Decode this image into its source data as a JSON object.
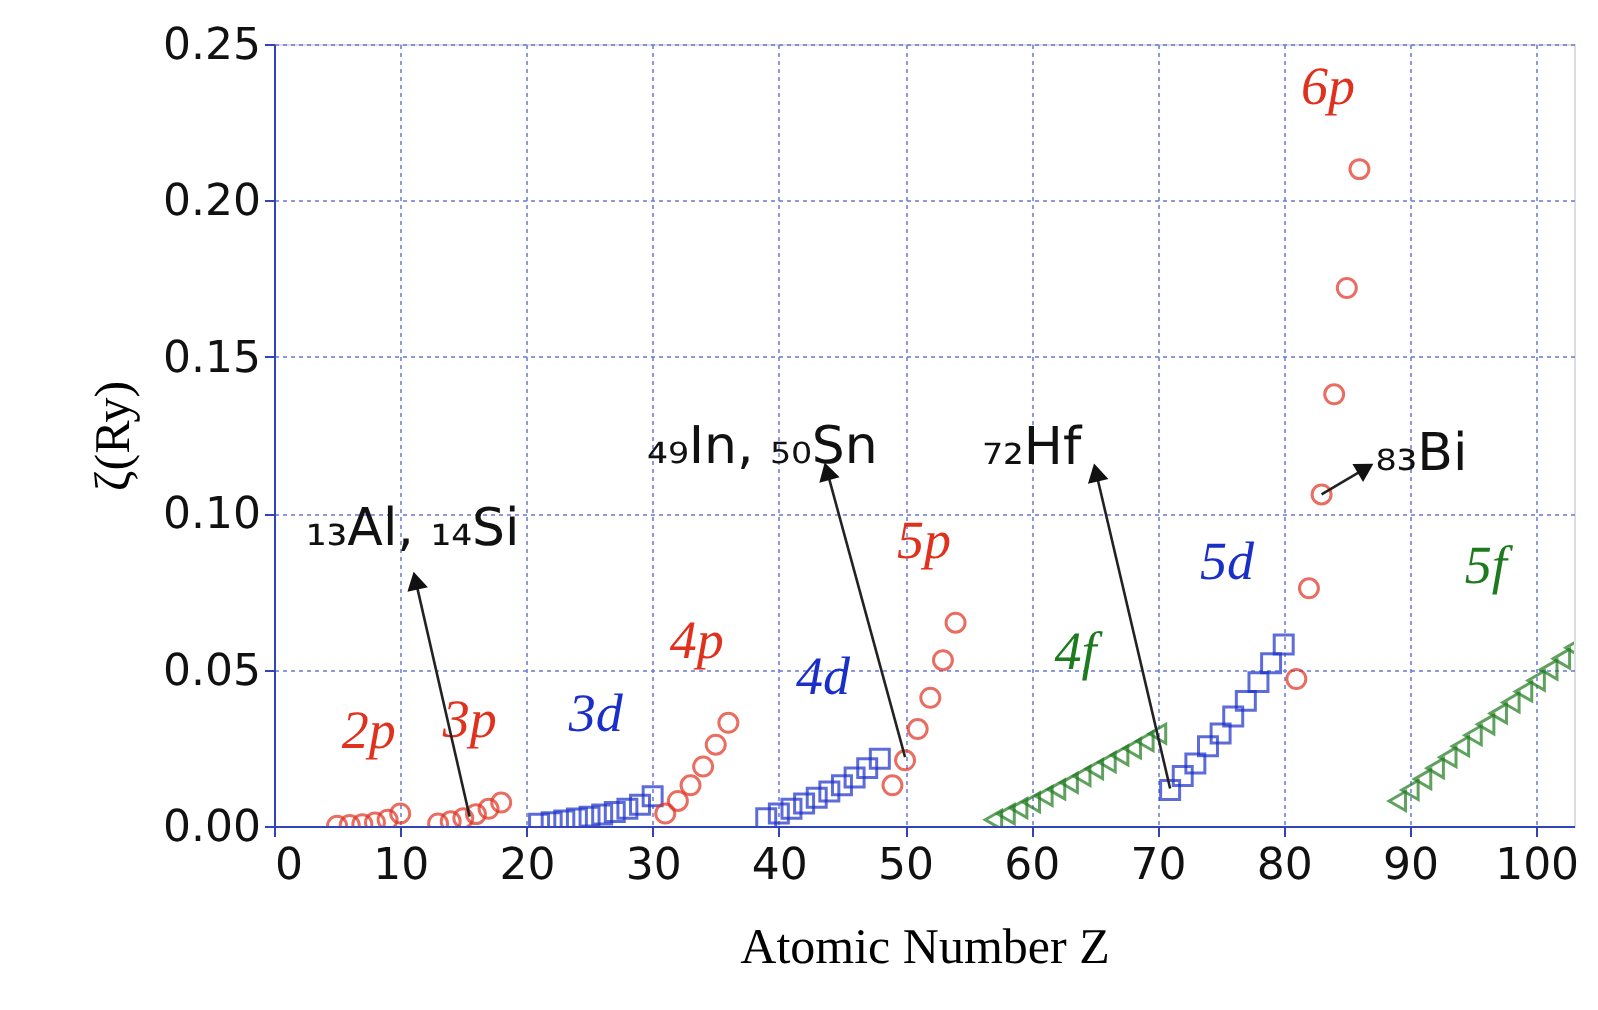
{
  "chart_data": {
    "type": "scatter",
    "xlabel": "Atomic Number Z",
    "ylabel": "ζ(Ry)",
    "xlim": [
      0,
      103
    ],
    "xticks": [
      0,
      10,
      20,
      30,
      40,
      50,
      60,
      70,
      80,
      90,
      100
    ],
    "ylim": [
      0,
      0.25
    ],
    "yticks": [
      {
        "value": 0,
        "label": "0.00"
      },
      {
        "value": 0.05,
        "label": "0.05"
      },
      {
        "value": 0.1,
        "label": "0.10"
      },
      {
        "value": 0.15,
        "label": "0.15"
      },
      {
        "value": 0.2,
        "label": "0.20"
      },
      {
        "value": 0.25,
        "label": "0.25"
      }
    ],
    "grid": true,
    "series": [
      {
        "name": "2p",
        "color": "#e0301e",
        "marker": "circle",
        "x": [
          5,
          6,
          7,
          8,
          9,
          10
        ],
        "values": [
          0.0001,
          0.0003,
          0.0006,
          0.0011,
          0.002,
          0.004
        ]
      },
      {
        "name": "3p",
        "color": "#e0301e",
        "marker": "circle",
        "x": [
          13,
          14,
          15,
          16,
          17,
          18
        ],
        "values": [
          0.0008,
          0.0015,
          0.0025,
          0.0038,
          0.0055,
          0.0075
        ]
      },
      {
        "name": "3d",
        "color": "#1a2fc8",
        "marker": "square",
        "x": [
          21,
          22,
          23,
          24,
          25,
          26,
          27,
          28,
          29,
          30
        ],
        "values": [
          0.0007,
          0.0012,
          0.0018,
          0.0024,
          0.003,
          0.0037,
          0.0045,
          0.0055,
          0.0068,
          0.0095
        ]
      },
      {
        "name": "4p",
        "color": "#e0301e",
        "marker": "circle",
        "x": [
          31,
          32,
          33,
          34,
          35,
          36
        ],
        "values": [
          0.004,
          0.008,
          0.013,
          0.019,
          0.026,
          0.033
        ]
      },
      {
        "name": "4d",
        "color": "#1a2fc8",
        "marker": "square",
        "x": [
          39,
          40,
          41,
          42,
          43,
          44,
          45,
          46,
          47,
          48
        ],
        "values": [
          0.0025,
          0.004,
          0.0055,
          0.0072,
          0.009,
          0.011,
          0.013,
          0.0155,
          0.0185,
          0.0215
        ]
      },
      {
        "name": "5p",
        "color": "#e0301e",
        "marker": "circle",
        "x": [
          49,
          50,
          51,
          52,
          53,
          54
        ],
        "values": [
          0.013,
          0.021,
          0.031,
          0.041,
          0.053,
          0.065
        ]
      },
      {
        "name": "4f",
        "color": "#1e7a1e",
        "marker": "triangle",
        "x": [
          57,
          58,
          59,
          60,
          61,
          62,
          63,
          64,
          65,
          66,
          67,
          68,
          69,
          70
        ],
        "values": [
          0.002,
          0.0038,
          0.0057,
          0.0076,
          0.0096,
          0.0117,
          0.0138,
          0.016,
          0.0182,
          0.0204,
          0.0226,
          0.0248,
          0.0271,
          0.0295
        ]
      },
      {
        "name": "5d",
        "color": "#1a2fc8",
        "marker": "square",
        "x": [
          71,
          72,
          73,
          74,
          75,
          76,
          77,
          78,
          79,
          80
        ],
        "values": [
          0.0115,
          0.016,
          0.02,
          0.0255,
          0.0296,
          0.035,
          0.04,
          0.046,
          0.052,
          0.058
        ]
      },
      {
        "name": "6p",
        "color": "#e0301e",
        "marker": "circle",
        "x": [
          81,
          82,
          83,
          84,
          85,
          86
        ],
        "values": [
          0.047,
          0.076,
          0.106,
          0.138,
          0.172,
          0.21
        ]
      },
      {
        "name": "5f",
        "color": "#1e7a1e",
        "marker": "triangle",
        "x": [
          89,
          90,
          91,
          92,
          93,
          94,
          95,
          96,
          97,
          98,
          99,
          100,
          101,
          102,
          103
        ],
        "values": [
          0.008,
          0.0115,
          0.015,
          0.0185,
          0.022,
          0.0255,
          0.029,
          0.0325,
          0.036,
          0.0395,
          0.043,
          0.0465,
          0.05,
          0.0535,
          0.057
        ]
      }
    ],
    "annotations": [
      {
        "text": "₁₃Al, ₁₄Si",
        "x": 15.5,
        "y": 0.003
      },
      {
        "text": "₄₉In, ₅₀Sn",
        "x": 50,
        "y": 0.022
      },
      {
        "text": "₇₂Hf",
        "x": 71,
        "y": 0.012
      },
      {
        "text": "₈₃Bi",
        "x": 83,
        "y": 0.106
      }
    ]
  }
}
